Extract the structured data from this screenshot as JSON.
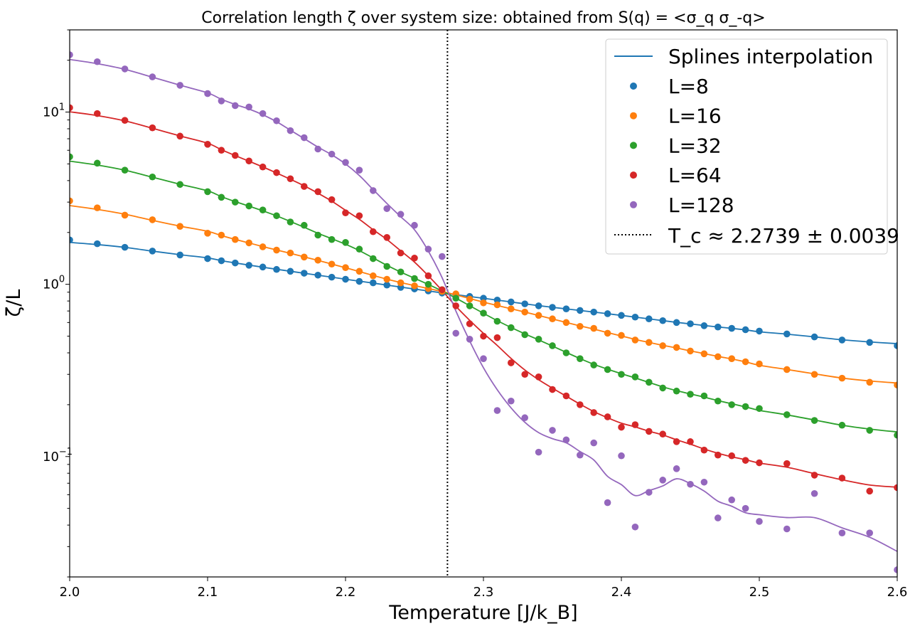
{
  "chart_data": {
    "type": "scatter",
    "title": "Correlation length ζ over system size: obtained from S(q) = <σ_q σ_-q>",
    "xlabel": "Temperature [J/k_B]",
    "ylabel": "ζ/L",
    "xlim": [
      2.0,
      2.6
    ],
    "ylim": [
      0.02,
      30
    ],
    "yscale": "log",
    "grid": false,
    "legend_position": "top-right",
    "x_ticks": [
      2.0,
      2.1,
      2.2,
      2.3,
      2.4,
      2.5,
      2.6
    ],
    "x_tick_labels": [
      "2.0",
      "2.1",
      "2.2",
      "2.3",
      "2.4",
      "2.5",
      "2.6"
    ],
    "y_ticks": [
      0.1,
      1,
      10
    ],
    "legend": {
      "spline_label": "Splines interpolation",
      "tc_label": "T_c ≈ 2.2739 ± 0.0039"
    },
    "vline": {
      "x": 2.2739,
      "style": "dotted",
      "color": "#000000"
    },
    "spline_color": "#1f77b4",
    "series": [
      {
        "name": "L=8",
        "color": "#1f77b4",
        "x": [
          2.0,
          2.02,
          2.04,
          2.06,
          2.08,
          2.1,
          2.11,
          2.12,
          2.13,
          2.14,
          2.15,
          2.16,
          2.17,
          2.18,
          2.19,
          2.2,
          2.21,
          2.22,
          2.23,
          2.24,
          2.25,
          2.26,
          2.27,
          2.28,
          2.29,
          2.3,
          2.31,
          2.32,
          2.33,
          2.34,
          2.35,
          2.36,
          2.37,
          2.38,
          2.39,
          2.4,
          2.41,
          2.42,
          2.43,
          2.44,
          2.45,
          2.46,
          2.47,
          2.48,
          2.49,
          2.5,
          2.52,
          2.54,
          2.56,
          2.58,
          2.6
        ],
        "y": [
          1.81,
          1.72,
          1.64,
          1.56,
          1.48,
          1.41,
          1.37,
          1.33,
          1.29,
          1.26,
          1.22,
          1.19,
          1.16,
          1.13,
          1.1,
          1.07,
          1.04,
          1.02,
          0.99,
          0.96,
          0.94,
          0.915,
          0.89,
          0.87,
          0.85,
          0.83,
          0.81,
          0.79,
          0.77,
          0.75,
          0.735,
          0.72,
          0.705,
          0.69,
          0.675,
          0.66,
          0.645,
          0.63,
          0.615,
          0.6,
          0.59,
          0.575,
          0.565,
          0.555,
          0.545,
          0.535,
          0.515,
          0.495,
          0.475,
          0.46,
          0.44
        ]
      },
      {
        "name": "L=16",
        "color": "#ff7f0e",
        "x": [
          2.0,
          2.02,
          2.04,
          2.06,
          2.08,
          2.1,
          2.11,
          2.12,
          2.13,
          2.14,
          2.15,
          2.16,
          2.17,
          2.18,
          2.19,
          2.2,
          2.21,
          2.22,
          2.23,
          2.24,
          2.25,
          2.26,
          2.27,
          2.28,
          2.29,
          2.3,
          2.31,
          2.32,
          2.33,
          2.34,
          2.35,
          2.36,
          2.37,
          2.38,
          2.39,
          2.4,
          2.41,
          2.42,
          2.43,
          2.44,
          2.45,
          2.46,
          2.47,
          2.48,
          2.49,
          2.5,
          2.52,
          2.54,
          2.56,
          2.58,
          2.6
        ],
        "y": [
          3.05,
          2.78,
          2.52,
          2.37,
          2.17,
          1.98,
          1.93,
          1.82,
          1.74,
          1.65,
          1.58,
          1.52,
          1.44,
          1.38,
          1.31,
          1.25,
          1.19,
          1.12,
          1.07,
          1.02,
          0.98,
          0.945,
          0.91,
          0.88,
          0.82,
          0.78,
          0.76,
          0.72,
          0.69,
          0.66,
          0.63,
          0.6,
          0.57,
          0.555,
          0.52,
          0.505,
          0.475,
          0.46,
          0.44,
          0.43,
          0.41,
          0.395,
          0.38,
          0.37,
          0.355,
          0.345,
          0.32,
          0.3,
          0.285,
          0.27,
          0.26
        ]
      },
      {
        "name": "L=32",
        "color": "#2ca02c",
        "x": [
          2.0,
          2.02,
          2.04,
          2.06,
          2.08,
          2.1,
          2.11,
          2.12,
          2.13,
          2.14,
          2.15,
          2.16,
          2.17,
          2.18,
          2.19,
          2.2,
          2.21,
          2.22,
          2.23,
          2.24,
          2.25,
          2.26,
          2.27,
          2.28,
          2.29,
          2.3,
          2.31,
          2.32,
          2.33,
          2.34,
          2.35,
          2.36,
          2.37,
          2.38,
          2.39,
          2.4,
          2.41,
          2.42,
          2.43,
          2.44,
          2.45,
          2.46,
          2.47,
          2.48,
          2.49,
          2.5,
          2.52,
          2.54,
          2.56,
          2.58,
          2.6
        ],
        "y": [
          5.5,
          5.05,
          4.6,
          4.2,
          3.8,
          3.45,
          3.2,
          3.0,
          2.85,
          2.7,
          2.5,
          2.3,
          2.2,
          1.93,
          1.82,
          1.75,
          1.6,
          1.41,
          1.27,
          1.18,
          1.08,
          1.0,
          0.93,
          0.83,
          0.75,
          0.68,
          0.61,
          0.56,
          0.51,
          0.48,
          0.44,
          0.4,
          0.37,
          0.34,
          0.32,
          0.3,
          0.29,
          0.27,
          0.25,
          0.24,
          0.23,
          0.225,
          0.21,
          0.2,
          0.195,
          0.19,
          0.175,
          0.162,
          0.152,
          0.142,
          0.133
        ]
      },
      {
        "name": "L=64",
        "color": "#d62728",
        "x": [
          2.0,
          2.02,
          2.04,
          2.06,
          2.08,
          2.1,
          2.11,
          2.12,
          2.13,
          2.14,
          2.15,
          2.16,
          2.17,
          2.18,
          2.19,
          2.2,
          2.21,
          2.22,
          2.23,
          2.24,
          2.25,
          2.26,
          2.27,
          2.28,
          2.29,
          2.3,
          2.31,
          2.32,
          2.33,
          2.34,
          2.35,
          2.36,
          2.37,
          2.38,
          2.39,
          2.4,
          2.41,
          2.42,
          2.43,
          2.44,
          2.45,
          2.46,
          2.47,
          2.48,
          2.49,
          2.5,
          2.52,
          2.54,
          2.56,
          2.58,
          2.6
        ],
        "y": [
          10.6,
          9.8,
          8.95,
          8.1,
          7.25,
          6.5,
          6.0,
          5.6,
          5.2,
          4.8,
          4.45,
          4.1,
          3.7,
          3.45,
          3.1,
          2.6,
          2.5,
          2.02,
          1.87,
          1.52,
          1.42,
          1.12,
          0.93,
          0.75,
          0.59,
          0.5,
          0.49,
          0.35,
          0.3,
          0.29,
          0.245,
          0.225,
          0.2,
          0.18,
          0.17,
          0.148,
          0.153,
          0.14,
          0.135,
          0.122,
          0.122,
          0.109,
          0.102,
          0.101,
          0.095,
          0.092,
          0.091,
          0.078,
          0.075,
          0.063,
          0.066
        ]
      },
      {
        "name": "L=128",
        "color": "#9467bd",
        "x": [
          2.0,
          2.02,
          2.04,
          2.06,
          2.08,
          2.1,
          2.11,
          2.12,
          2.13,
          2.14,
          2.15,
          2.16,
          2.17,
          2.18,
          2.19,
          2.2,
          2.21,
          2.22,
          2.23,
          2.24,
          2.25,
          2.26,
          2.27,
          2.28,
          2.29,
          2.3,
          2.31,
          2.32,
          2.33,
          2.34,
          2.35,
          2.36,
          2.37,
          2.38,
          2.39,
          2.4,
          2.41,
          2.42,
          2.43,
          2.44,
          2.45,
          2.46,
          2.47,
          2.48,
          2.49,
          2.5,
          2.52,
          2.54,
          2.56,
          2.58,
          2.6
        ],
        "y": [
          21.5,
          19.6,
          17.8,
          16.0,
          14.3,
          12.8,
          11.6,
          10.9,
          10.7,
          9.8,
          8.9,
          7.8,
          7.1,
          6.1,
          5.7,
          5.1,
          4.6,
          3.5,
          2.75,
          2.55,
          2.2,
          1.6,
          1.45,
          0.52,
          0.48,
          0.37,
          0.185,
          0.21,
          0.168,
          0.106,
          0.142,
          0.125,
          0.102,
          0.12,
          0.054,
          0.101,
          0.039,
          0.062,
          0.073,
          0.085,
          0.069,
          0.071,
          0.044,
          0.056,
          0.05,
          0.042,
          0.038,
          0.061,
          0.036,
          0.036,
          0.022
        ]
      }
    ]
  }
}
